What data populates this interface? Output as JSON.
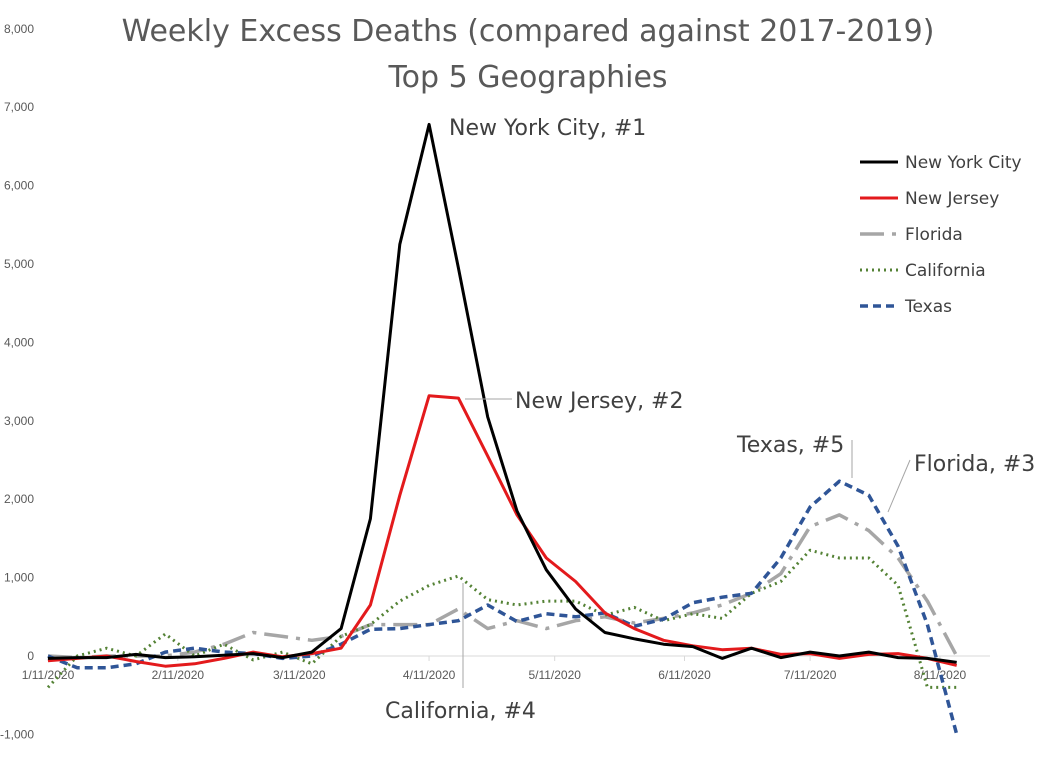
{
  "chart_data": {
    "type": "line",
    "title": "Weekly Excess Deaths (compared against 2017-2019)",
    "subtitle": "Top 5 Geographies",
    "xlabel": "",
    "ylabel": "",
    "ylim": [
      -1000,
      8000
    ],
    "y_ticks": [
      "-1,000",
      "0",
      "1,000",
      "2,000",
      "3,000",
      "4,000",
      "5,000",
      "6,000",
      "7,000",
      "8,000"
    ],
    "x_ticks": [
      "1/11/2020",
      "2/11/2020",
      "3/11/2020",
      "4/11/2020",
      "5/11/2020",
      "6/11/2020",
      "7/11/2020",
      "8/11/2020"
    ],
    "grid": false,
    "legend_position": "right",
    "x_dates": [
      "2020-01-11",
      "2020-01-18",
      "2020-01-25",
      "2020-02-01",
      "2020-02-08",
      "2020-02-15",
      "2020-02-22",
      "2020-02-29",
      "2020-03-07",
      "2020-03-14",
      "2020-03-21",
      "2020-03-28",
      "2020-04-04",
      "2020-04-11",
      "2020-04-18",
      "2020-04-25",
      "2020-05-02",
      "2020-05-09",
      "2020-05-16",
      "2020-05-23",
      "2020-05-30",
      "2020-06-06",
      "2020-06-13",
      "2020-06-20",
      "2020-06-27",
      "2020-07-04",
      "2020-07-11",
      "2020-07-18",
      "2020-07-25",
      "2020-08-01",
      "2020-08-08",
      "2020-08-15"
    ],
    "series": [
      {
        "name": "New York City",
        "color": "#000000",
        "style": "solid",
        "values": [
          -30,
          -20,
          -20,
          20,
          -20,
          -10,
          10,
          30,
          -20,
          50,
          350,
          1750,
          5250,
          6780,
          4950,
          3050,
          1850,
          1100,
          600,
          300,
          220,
          150,
          120,
          -30,
          100,
          -20,
          50,
          0,
          50,
          -20,
          -30,
          -80
        ]
      },
      {
        "name": "New Jersey",
        "color": "#e31a1c",
        "style": "solid",
        "values": [
          -60,
          -30,
          0,
          -70,
          -130,
          -100,
          -30,
          50,
          -10,
          30,
          100,
          650,
          2050,
          3320,
          3290,
          2550,
          1800,
          1250,
          950,
          550,
          350,
          200,
          130,
          80,
          100,
          20,
          30,
          -30,
          20,
          30,
          -30,
          -120
        ]
      },
      {
        "name": "Florida",
        "color": "#a6a6a6",
        "style": "dashdot",
        "values": [
          0,
          -20,
          0,
          0,
          0,
          50,
          150,
          300,
          250,
          200,
          250,
          400,
          400,
          400,
          600,
          350,
          450,
          350,
          450,
          500,
          420,
          480,
          550,
          650,
          800,
          1050,
          1650,
          1800,
          1600,
          1250,
          700,
          0
        ]
      },
      {
        "name": "California",
        "color": "#548235",
        "style": "dotted",
        "values": [
          -400,
          0,
          100,
          0,
          280,
          0,
          150,
          -50,
          50,
          -100,
          250,
          400,
          700,
          900,
          1020,
          720,
          650,
          700,
          700,
          520,
          620,
          450,
          540,
          480,
          800,
          950,
          1350,
          1250,
          1250,
          900,
          -400,
          -400
        ]
      },
      {
        "name": "Texas",
        "color": "#2f5597",
        "style": "dashed",
        "values": [
          0,
          -150,
          -150,
          -100,
          50,
          100,
          50,
          30,
          -30,
          0,
          150,
          340,
          350,
          400,
          450,
          650,
          440,
          540,
          500,
          550,
          380,
          470,
          680,
          750,
          800,
          1250,
          1900,
          2230,
          2050,
          1400,
          400,
          -1000
        ]
      }
    ],
    "annotations": [
      {
        "text": "New York City, #1"
      },
      {
        "text": "New Jersey, #2"
      },
      {
        "text": "Texas, #5"
      },
      {
        "text": "Florida, #3"
      },
      {
        "text": "California, #4"
      }
    ]
  }
}
